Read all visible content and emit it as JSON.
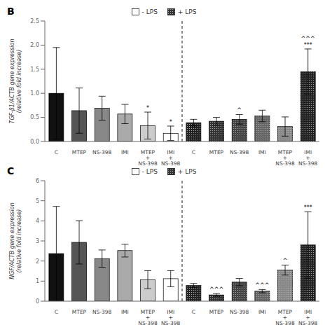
{
  "chart_data": [
    {
      "type": "bar",
      "title": "B",
      "ylabel": "TGF-β1/ACTB gene expression\n(relative fold increase)",
      "categories": [
        "C",
        "MTEP",
        "NS-398",
        "IMI",
        "MTEP\n+\nNS-398",
        "IMI\n+\nNS-398",
        "C",
        "MTEP",
        "NS-398",
        "IMI",
        "MTEP\n+\nNS-398",
        "IMI\n+\nNS-398"
      ],
      "series": [
        {
          "name": "- LPS",
          "color": "#ffffff",
          "colors": [
            "#111111",
            "#555555",
            "#888888",
            "#aaaaaa",
            "#cccccc",
            "#ffffff",
            null,
            null,
            null,
            null,
            null,
            null
          ],
          "values": [
            1.0,
            0.64,
            0.69,
            0.57,
            0.33,
            0.17,
            null,
            null,
            null,
            null,
            null,
            null
          ],
          "errors": [
            0.95,
            0.47,
            0.25,
            0.2,
            0.28,
            0.15,
            null,
            null,
            null,
            null,
            null,
            null
          ],
          "significance": [
            null,
            null,
            null,
            null,
            "*",
            "*",
            null,
            null,
            null,
            null,
            null,
            null
          ]
        },
        {
          "name": "+ LPS",
          "color": "#333333",
          "colors": [
            null,
            null,
            null,
            null,
            null,
            null,
            "#222222",
            "#333333",
            "#444444",
            "#666666",
            "#888888",
            "#222222"
          ],
          "values": [
            null,
            null,
            null,
            null,
            null,
            null,
            0.39,
            0.42,
            0.46,
            0.53,
            0.31,
            1.45
          ],
          "errors": [
            null,
            null,
            null,
            null,
            null,
            null,
            0.07,
            0.08,
            0.1,
            0.12,
            0.2,
            0.47
          ],
          "significance": [
            null,
            null,
            null,
            null,
            null,
            null,
            null,
            null,
            "^",
            null,
            null,
            "^^^\n***"
          ]
        }
      ],
      "ylim": [
        0,
        2.5
      ],
      "yticks": [
        {
          "value": 0,
          "label": "0.0"
        },
        0.5,
        {
          "value": 1,
          "label": "1.0"
        },
        1.5,
        {
          "value": 2,
          "label": "2.0"
        },
        2.5
      ]
    },
    {
      "type": "bar",
      "title": "C",
      "ylabel": "NGF/ACTB gene expression\n(relative fold increase)",
      "categories": [
        "C",
        "MTEP",
        "NS-398",
        "IMI",
        "MTEP\n+\nNS-398",
        "IMI\n+\nNS-398",
        "C",
        "MTEP",
        "NS-398",
        "IMI",
        "MTEP\n+\nNS-398",
        "IMI\n+\nNS-398"
      ],
      "series": [
        {
          "name": "- LPS",
          "color": "#ffffff",
          "colors": [
            "#111111",
            "#555555",
            "#888888",
            "#aaaaaa",
            "#cccccc",
            "#ffffff",
            null,
            null,
            null,
            null,
            null,
            null
          ],
          "values": [
            2.37,
            2.93,
            2.12,
            2.52,
            1.07,
            1.12,
            null,
            null,
            null,
            null,
            null,
            null
          ],
          "errors": [
            2.35,
            1.08,
            0.43,
            0.32,
            0.45,
            0.4,
            null,
            null,
            null,
            null,
            null,
            null
          ],
          "significance": [
            null,
            null,
            null,
            null,
            null,
            null,
            null,
            null,
            null,
            null,
            null,
            null
          ]
        },
        {
          "name": "+ LPS",
          "color": "#333333",
          "colors": [
            null,
            null,
            null,
            null,
            null,
            null,
            "#222222",
            "#333333",
            "#444444",
            "#666666",
            "#888888",
            "#222222"
          ],
          "values": [
            null,
            null,
            null,
            null,
            null,
            null,
            0.78,
            0.31,
            0.95,
            0.5,
            1.55,
            2.8
          ],
          "errors": [
            null,
            null,
            null,
            null,
            null,
            null,
            0.1,
            0.07,
            0.18,
            0.08,
            0.25,
            1.65
          ],
          "significance": [
            null,
            null,
            null,
            null,
            null,
            null,
            null,
            "^^^",
            null,
            "^^^",
            "^",
            "***"
          ]
        }
      ],
      "ylim": [
        0,
        6
      ],
      "yticks": [
        0,
        1,
        2,
        3,
        4,
        5,
        6
      ]
    }
  ]
}
